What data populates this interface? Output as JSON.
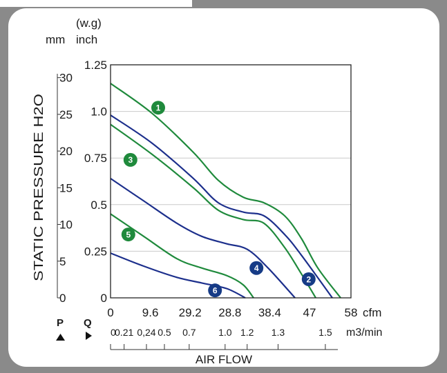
{
  "units": {
    "top": "(w.g)",
    "left": "mm",
    "right": "inch"
  },
  "colors": {
    "green": "#1f8a3c",
    "blue": "#1c2f8c",
    "badge_green": "#1f8a3c",
    "badge_blue": "#163b86"
  },
  "chart_data": {
    "type": "line",
    "ylabel": "STATIC PRESSURE H2O",
    "xlabel": "AIR FLOW",
    "x_unit_cfm": "cfm",
    "x_unit_m3": "m3/min",
    "label_P": "P",
    "label_Q": "Q",
    "xlim": [
      0,
      58
    ],
    "ylim": [
      0,
      1.25
    ],
    "grid": true,
    "inch_ticks": [
      "1.25",
      "1.0",
      "0.75",
      "0.5",
      "0.25",
      "0"
    ],
    "mm_ticks": [
      "30",
      "25",
      "20",
      "15",
      "10",
      "5",
      "0"
    ],
    "cfm_ticks": [
      "0",
      "9.6",
      "29.2",
      "28.8",
      "38.4",
      "47",
      "58"
    ],
    "m3_ticks": [
      "0",
      "0.21",
      "0,24",
      "0.5",
      "0.7",
      "1.0",
      "1.2",
      "1.3",
      "1.5"
    ],
    "series": [
      {
        "name": "1",
        "color": "green",
        "x": [
          0,
          10,
          20,
          26,
          32,
          37,
          42,
          46,
          50,
          55.5
        ],
        "y": [
          1.15,
          0.99,
          0.78,
          0.63,
          0.54,
          0.51,
          0.44,
          0.32,
          0.16,
          0
        ]
      },
      {
        "name": "2",
        "color": "blue",
        "x": [
          0,
          10,
          20,
          26,
          32,
          37,
          42,
          46,
          53.5
        ],
        "y": [
          0.98,
          0.83,
          0.64,
          0.51,
          0.46,
          0.44,
          0.34,
          0.23,
          0
        ]
      },
      {
        "name": "3",
        "color": "green",
        "x": [
          0,
          10,
          20,
          26,
          32,
          37,
          42,
          46,
          49.5
        ],
        "y": [
          0.93,
          0.77,
          0.59,
          0.47,
          0.42,
          0.4,
          0.27,
          0.13,
          0
        ]
      },
      {
        "name": "4",
        "color": "blue",
        "x": [
          0,
          8,
          16,
          22,
          28,
          33,
          38,
          44.5
        ],
        "y": [
          0.64,
          0.52,
          0.4,
          0.33,
          0.29,
          0.26,
          0.16,
          0
        ]
      },
      {
        "name": "5",
        "color": "green",
        "x": [
          0,
          8,
          16,
          22,
          28,
          32,
          34.5
        ],
        "y": [
          0.45,
          0.33,
          0.21,
          0.16,
          0.12,
          0.07,
          0
        ]
      },
      {
        "name": "6",
        "color": "blue",
        "x": [
          0,
          8,
          16,
          22,
          28,
          32.5
        ],
        "y": [
          0.24,
          0.17,
          0.11,
          0.08,
          0.05,
          0
        ]
      }
    ],
    "badges": [
      {
        "label": "1",
        "series": "1",
        "color": "green",
        "x": 11.5,
        "y": 1.02
      },
      {
        "label": "2",
        "series": "2",
        "color": "blue",
        "x": 47.8,
        "y": 0.1
      },
      {
        "label": "3",
        "series": "3",
        "color": "green",
        "x": 4.8,
        "y": 0.74
      },
      {
        "label": "4",
        "series": "4",
        "color": "blue",
        "x": 35.2,
        "y": 0.16
      },
      {
        "label": "5",
        "series": "5",
        "color": "green",
        "x": 4.3,
        "y": 0.34
      },
      {
        "label": "6",
        "series": "6",
        "color": "blue",
        "x": 25.2,
        "y": 0.04
      }
    ]
  }
}
